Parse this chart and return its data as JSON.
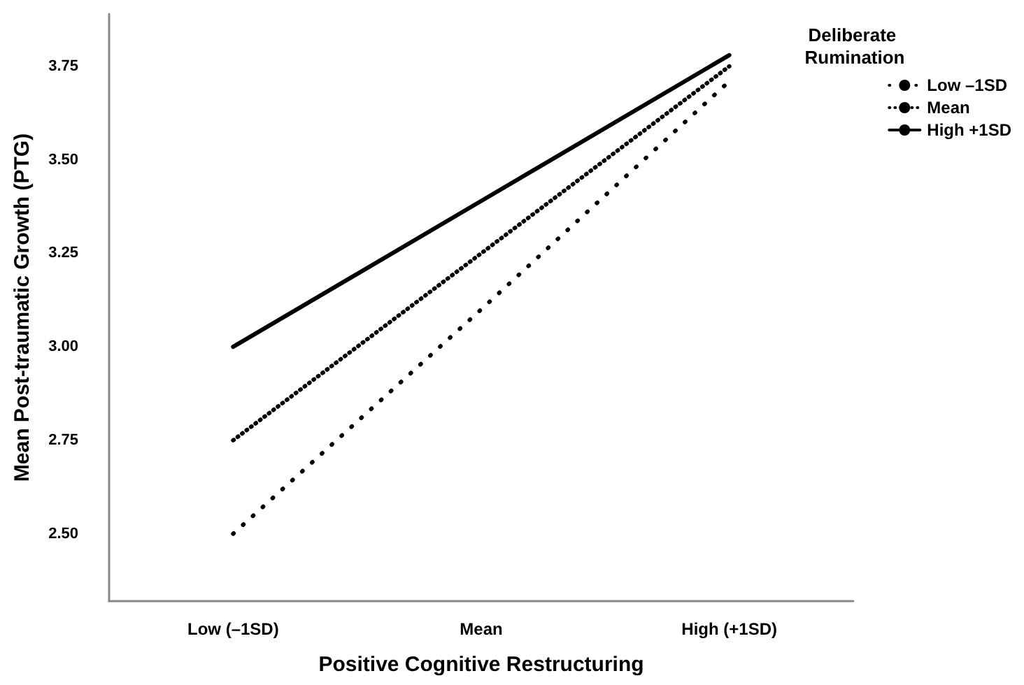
{
  "chart_data": {
    "type": "line",
    "xlabel": "Positive Cognitive Restructuring",
    "ylabel": "Mean Post-traumatic Growth (PTG)",
    "legend_title": "Deliberate Rumination",
    "categories": [
      "Low (–1SD)",
      "Mean",
      "High (+1SD)"
    ],
    "series": [
      {
        "name": "Low –1SD",
        "color": "#000000",
        "line_style": "dotted",
        "values": [
          2.5,
          3.1,
          3.71
        ]
      },
      {
        "name": "Mean",
        "color": "#000000",
        "line_style": "dotted",
        "values": [
          2.75,
          3.25,
          3.75
        ]
      },
      {
        "name": "High +1SD",
        "color": "#000000",
        "line_style": "solid",
        "values": [
          3.0,
          3.39,
          3.78
        ]
      }
    ],
    "ylim": [
      2.32,
      3.89
    ],
    "yticks": [
      {
        "value": 2.5,
        "label": "2.50"
      },
      {
        "value": 2.75,
        "label": "2.75"
      },
      {
        "value": 3.0,
        "label": "3.00"
      },
      {
        "value": 3.25,
        "label": "3.25"
      },
      {
        "value": 3.5,
        "label": "3.50"
      },
      {
        "value": 3.75,
        "label": "3.75"
      }
    ],
    "grid": false,
    "legend": "right"
  }
}
